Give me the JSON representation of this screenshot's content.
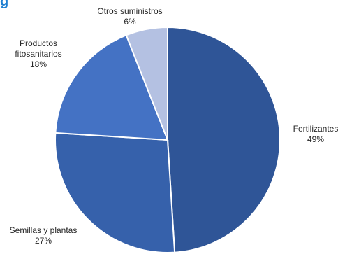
{
  "header_fragment": "g",
  "chart_data": {
    "type": "pie",
    "slices": [
      {
        "label_lines": [
          "Fertilizantes"
        ],
        "percent_label": "49%",
        "value": 49,
        "color": "#2f5597"
      },
      {
        "label_lines": [
          "Semillas y plantas"
        ],
        "percent_label": "27%",
        "value": 27,
        "color": "#3661ab"
      },
      {
        "label_lines": [
          "Productos",
          "fitosanitarios"
        ],
        "percent_label": "18%",
        "value": 18,
        "color": "#4472c4"
      },
      {
        "label_lines": [
          "Otros suministros"
        ],
        "percent_label": "6%",
        "value": 6,
        "color": "#b4c1e2"
      }
    ],
    "start_angle_deg": 0,
    "direction": "clockwise"
  }
}
